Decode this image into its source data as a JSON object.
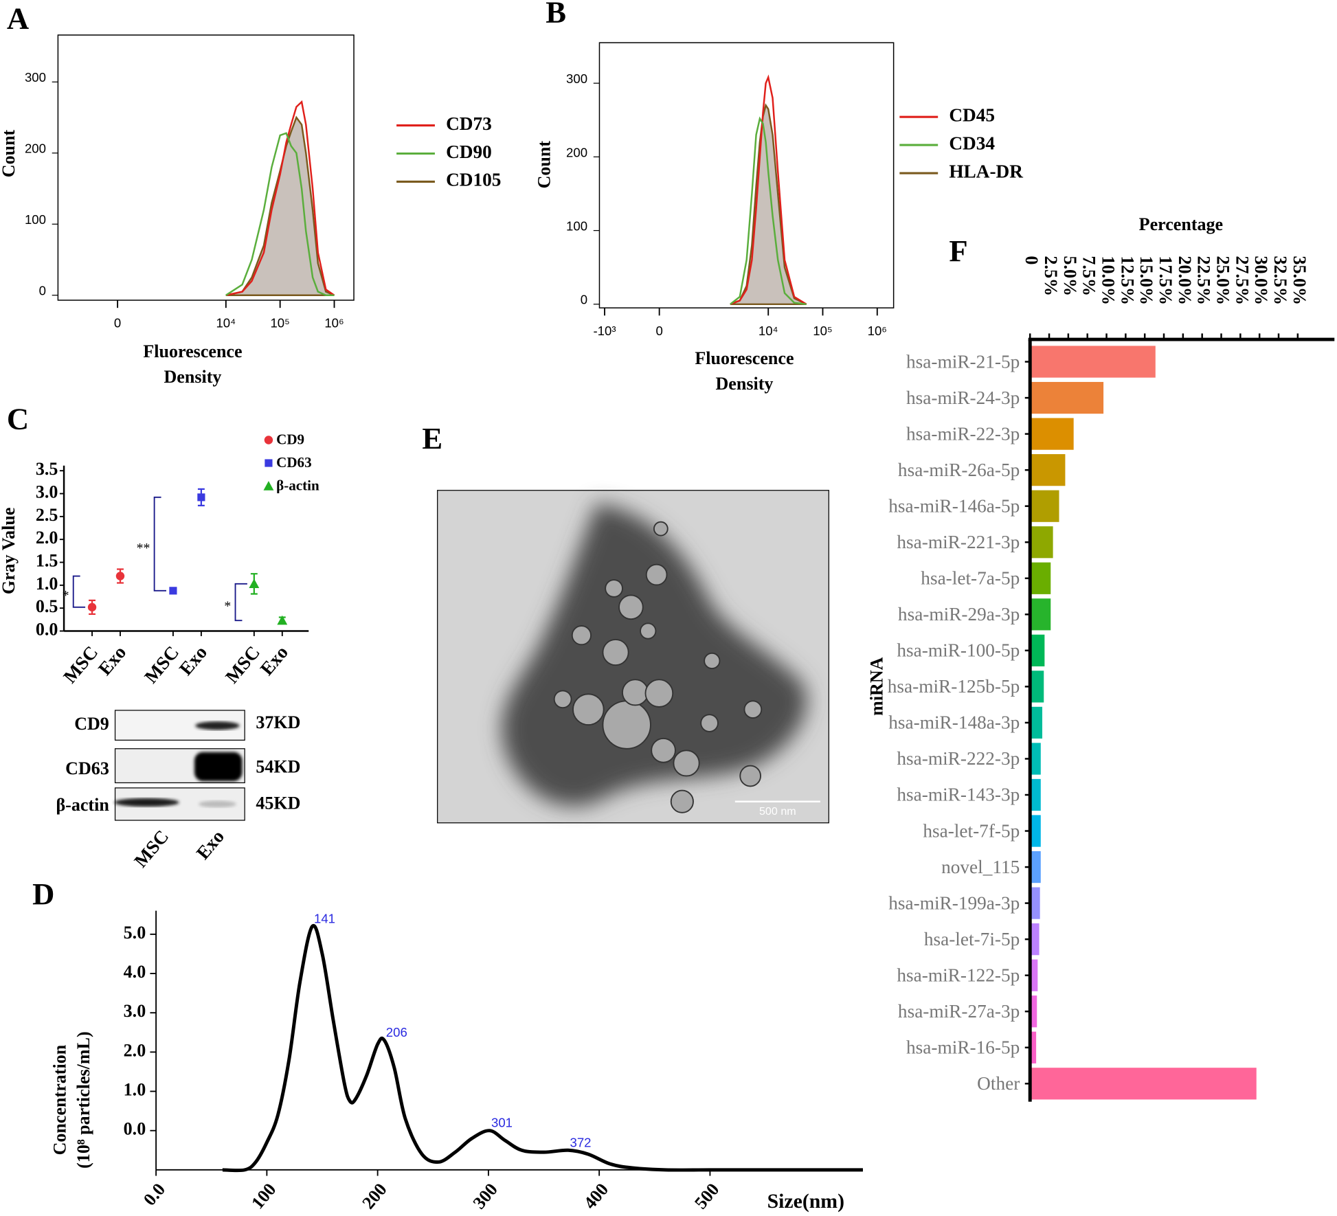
{
  "chart_data": [
    {
      "panel": "A",
      "type": "density",
      "ylabel": "Count",
      "xlabel": [
        "Fluorescence",
        "Density"
      ],
      "xscale": "logicle",
      "xlim": [
        -1250,
        2300000
      ],
      "ylim": [
        -7,
        366
      ],
      "xticks": [
        0,
        {
          "value": 10000,
          "label": "10⁴"
        },
        {
          "value": 100000,
          "label": "10⁵"
        },
        {
          "value": 1000000,
          "label": "10⁶"
        }
      ],
      "yticks": [
        0,
        100,
        200,
        300
      ],
      "x": [
        10000,
        20000,
        30000,
        50000,
        70000,
        100000,
        130000,
        160000,
        200000,
        250000,
        300000,
        400000,
        500000,
        700000,
        1000000
      ],
      "series": [
        {
          "name": "CD73",
          "color": "#e0201b",
          "values": [
            0,
            5,
            20,
            60,
            120,
            170,
            215,
            240,
            265,
            272,
            240,
            150,
            60,
            8,
            0
          ]
        },
        {
          "name": "CD90",
          "color": "#5aae3c",
          "values": [
            0,
            15,
            50,
            120,
            180,
            225,
            228,
            210,
            200,
            150,
            90,
            25,
            5,
            0,
            0
          ]
        },
        {
          "name": "CD105",
          "color": "#7a5a1e",
          "fill": "#c9c1bb",
          "values": [
            0,
            5,
            25,
            70,
            130,
            175,
            210,
            230,
            250,
            240,
            200,
            120,
            45,
            5,
            0
          ]
        }
      ]
    },
    {
      "panel": "B",
      "type": "density",
      "ylabel": "Count",
      "xlabel": [
        "Fluorescence",
        "Density"
      ],
      "xscale": "logicle",
      "xlim": [
        -1250,
        2000000
      ],
      "ylim": [
        -5,
        355
      ],
      "xticks": [
        {
          "value": -1000,
          "label": "-10³"
        },
        0,
        {
          "value": 10000,
          "label": "10⁴"
        },
        {
          "value": 100000,
          "label": "10⁵"
        },
        {
          "value": 1000000,
          "label": "10⁶"
        }
      ],
      "yticks": [
        0,
        100,
        200,
        300
      ],
      "x": [
        2000,
        3000,
        4000,
        5000,
        6000,
        7000,
        8000,
        9000,
        10000,
        12000,
        15000,
        20000,
        30000,
        50000
      ],
      "series": [
        {
          "name": "CD45",
          "color": "#e0201b",
          "values": [
            0,
            5,
            20,
            60,
            130,
            200,
            260,
            300,
            308,
            280,
            180,
            60,
            10,
            0
          ]
        },
        {
          "name": "CD34",
          "color": "#5aae3c",
          "values": [
            0,
            10,
            60,
            150,
            230,
            252,
            245,
            220,
            180,
            120,
            60,
            15,
            2,
            0
          ]
        },
        {
          "name": "HLA-DR",
          "color": "#7a5a1e",
          "fill": "#c9c1bb",
          "values": [
            0,
            5,
            25,
            80,
            160,
            220,
            255,
            270,
            265,
            230,
            150,
            50,
            8,
            0
          ]
        }
      ]
    },
    {
      "panel": "C",
      "type": "dot",
      "ylabel": "Gray Value",
      "categories": [
        "MSC",
        "Exo",
        "MSC",
        "Exo",
        "MSC",
        "Exo"
      ],
      "ylim": [
        0,
        3.5
      ],
      "yticks": [
        {
          "value": 0,
          "label": "0.0"
        },
        {
          "value": 0.5,
          "label": "0.5"
        },
        {
          "value": 1,
          "label": "1.0"
        },
        {
          "value": 1.5,
          "label": "1.5"
        },
        {
          "value": 2,
          "label": "2.0"
        },
        {
          "value": 2.5,
          "label": "2.5"
        },
        {
          "value": 3,
          "label": "3.0"
        },
        {
          "value": 3.5,
          "label": "3.5"
        }
      ],
      "series": [
        {
          "name": "CD9",
          "color": "#e8333a",
          "marker": "circle",
          "values": [
            0.52,
            1.2,
            null,
            null,
            null,
            null
          ],
          "errors": [
            0.15,
            0.15,
            null,
            null,
            null,
            null
          ]
        },
        {
          "name": "CD63",
          "color": "#3a3ae0",
          "marker": "square",
          "values": [
            null,
            null,
            0.88,
            2.92,
            null,
            null
          ],
          "errors": [
            null,
            null,
            0.05,
            0.18,
            null,
            null
          ]
        },
        {
          "name": "β-actin",
          "color": "#22b022",
          "marker": "triangle",
          "values": [
            null,
            null,
            null,
            null,
            1.03,
            0.23
          ],
          "errors": [
            null,
            null,
            null,
            null,
            0.22,
            0.07
          ]
        }
      ],
      "significance": [
        "*",
        "**",
        "*"
      ]
    },
    {
      "panel": "D",
      "type": "line",
      "ylabel": [
        "Concentration",
        "(10⁸ particles/mL)"
      ],
      "xlabel": "Size(nm)",
      "xlim": [
        0,
        638
      ],
      "ylim": [
        -1.0,
        5.6
      ],
      "xticks": [
        {
          "value": 0,
          "label": "0.0"
        },
        100,
        200,
        300,
        400,
        500
      ],
      "yticks": [
        {
          "value": 0,
          "label": "0.0"
        },
        {
          "value": 1,
          "label": "1.0"
        },
        {
          "value": 2,
          "label": "2.0"
        },
        {
          "value": 3,
          "label": "3.0"
        },
        {
          "value": 4,
          "label": "4.0"
        },
        {
          "value": 5,
          "label": "5.0"
        }
      ],
      "color": "#000000",
      "x": [
        60,
        80,
        90,
        100,
        110,
        120,
        130,
        141,
        150,
        160,
        170,
        175,
        180,
        190,
        200,
        206,
        215,
        225,
        240,
        255,
        270,
        285,
        301,
        315,
        330,
        350,
        372,
        390,
        410,
        430,
        460,
        500,
        550,
        638
      ],
      "values": [
        -1,
        -1,
        -0.8,
        -0.3,
        0.4,
        1.8,
        3.8,
        5.2,
        4.5,
        2.8,
        1.2,
        0.75,
        0.8,
        1.4,
        2.2,
        2.3,
        1.6,
        0.3,
        -0.6,
        -0.8,
        -0.55,
        -0.2,
        0.0,
        -0.25,
        -0.5,
        -0.55,
        -0.5,
        -0.6,
        -0.85,
        -0.95,
        -1.0,
        -1.0,
        -1.0,
        -1.0
      ],
      "peaks": [
        141,
        206,
        301,
        372
      ],
      "peak_color": "#2a2ae0"
    },
    {
      "panel": "F",
      "type": "barh",
      "xlabel": "Percentage",
      "ylabel": "miRNA",
      "xlim": [
        0,
        39.8
      ],
      "xticks": [
        0,
        {
          "value": 2.5,
          "label": "2.5%"
        },
        {
          "value": 5,
          "label": "5.0%"
        },
        {
          "value": 7.5,
          "label": "7.5%"
        },
        {
          "value": 10,
          "label": "10.0%"
        },
        {
          "value": 12.5,
          "label": "12.5%"
        },
        {
          "value": 15,
          "label": "15.0%"
        },
        {
          "value": 17.5,
          "label": "17.5%"
        },
        {
          "value": 20,
          "label": "20.0%"
        },
        {
          "value": 22.5,
          "label": "22.5%"
        },
        {
          "value": 25,
          "label": "25.0%"
        },
        {
          "value": 27.5,
          "label": "27.5%"
        },
        {
          "value": 30,
          "label": "30.0%"
        },
        {
          "value": 32.5,
          "label": "32.5%"
        },
        {
          "value": 35,
          "label": "35.0%"
        }
      ],
      "categories": [
        "hsa-miR-21-5p",
        "hsa-miR-24-3p",
        "hsa-miR-22-3p",
        "hsa-miR-26a-5p",
        "hsa-miR-146a-5p",
        "hsa-miR-221-3p",
        "hsa-let-7a-5p",
        "hsa-miR-29a-3p",
        "hsa-miR-100-5p",
        "hsa-miR-125b-5p",
        "hsa-miR-148a-3p",
        "hsa-miR-222-3p",
        "hsa-miR-143-3p",
        "hsa-let-7f-5p",
        "novel_115",
        "hsa-miR-199a-3p",
        "hsa-let-7i-5p",
        "hsa-miR-122-5p",
        "hsa-miR-27a-3p",
        "hsa-miR-16-5p",
        "Other"
      ],
      "values": [
        16.4,
        9.6,
        5.7,
        4.6,
        3.8,
        3.0,
        2.7,
        2.7,
        1.9,
        1.8,
        1.6,
        1.4,
        1.4,
        1.4,
        1.4,
        1.3,
        1.2,
        1.0,
        0.9,
        0.8,
        29.6
      ],
      "colors": [
        "#f8766d",
        "#ec8239",
        "#dc8f00",
        "#c99700",
        "#b09e00",
        "#8ea800",
        "#6aae00",
        "#27b42c",
        "#00b857",
        "#00ba7a",
        "#00bc9a",
        "#00bcb6",
        "#00bad0",
        "#00b6e7",
        "#5ca1ff",
        "#9590ff",
        "#bc82ff",
        "#d976f5",
        "#f067e0",
        "#f95fc6",
        "#ff6699"
      ]
    }
  ],
  "blot": {
    "rows": [
      {
        "label": "CD9",
        "size": "37KD"
      },
      {
        "label": "CD63",
        "size": "54KD"
      },
      {
        "label": "β-actin",
        "size": "45KD"
      }
    ],
    "lanes": [
      "MSC",
      "Exo"
    ]
  },
  "micrograph": {
    "panel": "E",
    "scale_bar": "500 nm"
  }
}
